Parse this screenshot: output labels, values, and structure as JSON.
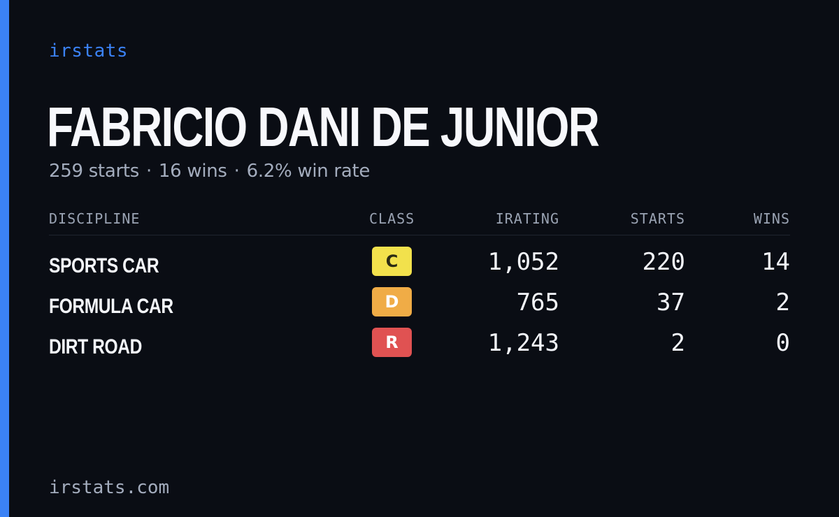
{
  "brand": "irstats",
  "player": {
    "name": "FABRICIO DANI DE JUNIOR",
    "starts_text": "259 starts",
    "wins_text": "16 wins",
    "winrate_text": "6.2% win rate",
    "separator": "·"
  },
  "table": {
    "headers": {
      "discipline": "DISCIPLINE",
      "class": "CLASS",
      "irating": "IRATING",
      "starts": "STARTS",
      "wins": "WINS"
    },
    "rows": [
      {
        "discipline": "SPORTS CAR",
        "class": "C",
        "class_color": "#f2e14c",
        "class_text_color": "#2a2a14",
        "irating": "1,052",
        "starts": "220",
        "wins": "14"
      },
      {
        "discipline": "FORMULA CAR",
        "class": "D",
        "class_color": "#f0ac46",
        "class_text_color": "#ffffff",
        "irating": "765",
        "starts": "37",
        "wins": "2"
      },
      {
        "discipline": "DIRT ROAD",
        "class": "R",
        "class_color": "#e05252",
        "class_text_color": "#ffffff",
        "irating": "1,243",
        "starts": "2",
        "wins": "0"
      }
    ]
  },
  "footer": "irstats.com",
  "colors": {
    "background": "#0a0d14",
    "accent": "#3b82f6",
    "muted_text": "#a3acbd"
  }
}
